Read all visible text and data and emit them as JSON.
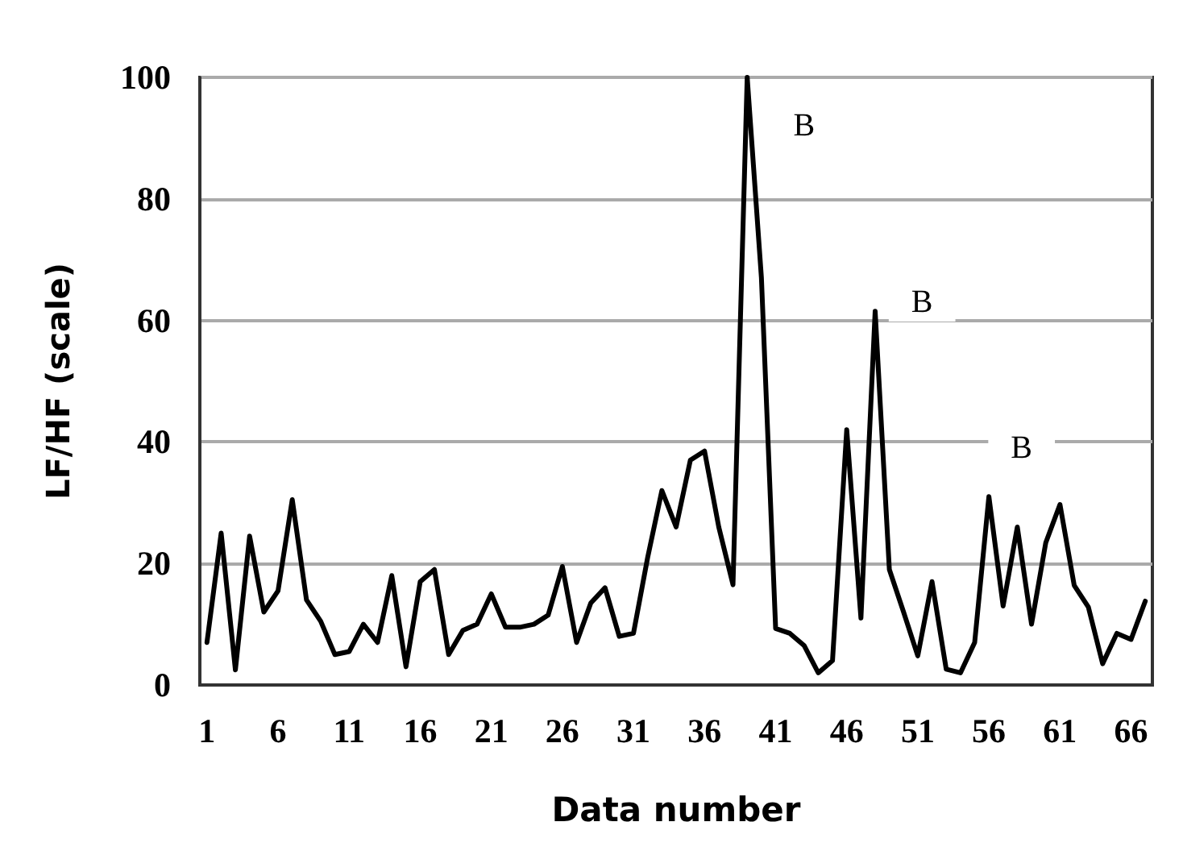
{
  "chart_data": {
    "type": "line",
    "xlabel": "Data number",
    "ylabel": "LF/HF (scale)",
    "x": [
      1,
      2,
      3,
      4,
      5,
      6,
      7,
      8,
      9,
      10,
      11,
      12,
      13,
      14,
      15,
      16,
      17,
      18,
      19,
      20,
      21,
      22,
      23,
      24,
      25,
      26,
      27,
      28,
      29,
      30,
      31,
      32,
      33,
      34,
      35,
      36,
      37,
      38,
      39,
      40,
      41,
      42,
      43,
      44,
      45,
      46,
      47,
      48,
      49,
      50,
      51,
      52,
      53,
      54,
      55,
      56,
      57,
      58,
      59,
      60,
      61,
      62,
      63,
      64,
      65,
      66,
      67
    ],
    "series": [
      {
        "color": "#000000",
        "values": [
          7,
          25,
          2.5,
          24.5,
          12,
          15.5,
          30.5,
          14,
          10.5,
          5,
          5.5,
          10,
          7,
          18,
          3,
          17,
          19,
          5,
          9,
          10,
          15,
          9.5,
          9.5,
          10,
          11.5,
          19.5,
          7,
          13.5,
          16,
          8,
          8.5,
          21,
          32,
          26,
          37,
          38.5,
          26,
          16.5,
          100,
          67,
          9.3,
          8.5,
          6.5,
          2,
          4,
          42,
          11,
          61.5,
          19,
          12,
          4.8,
          17,
          2.6,
          2,
          7,
          31,
          13,
          26,
          10,
          23.4,
          29.7,
          16.4,
          12.8,
          3.5,
          8.5,
          7.5,
          13.8
        ]
      }
    ],
    "xlim": [
      0.5,
      67.5
    ],
    "xticks": [
      1,
      6,
      11,
      16,
      21,
      26,
      31,
      36,
      41,
      46,
      51,
      56,
      61,
      66
    ],
    "ylim": [
      0,
      100
    ],
    "yticks": [
      0,
      20,
      40,
      60,
      80,
      100
    ],
    "grid": "y",
    "marker": "none",
    "line_style": "solid",
    "annotations": [
      {
        "text": "B",
        "x": 43,
        "y": 92
      },
      {
        "text": "B",
        "x": 51.3,
        "y": 63
      },
      {
        "text": "B",
        "x": 58.3,
        "y": 39
      }
    ]
  }
}
